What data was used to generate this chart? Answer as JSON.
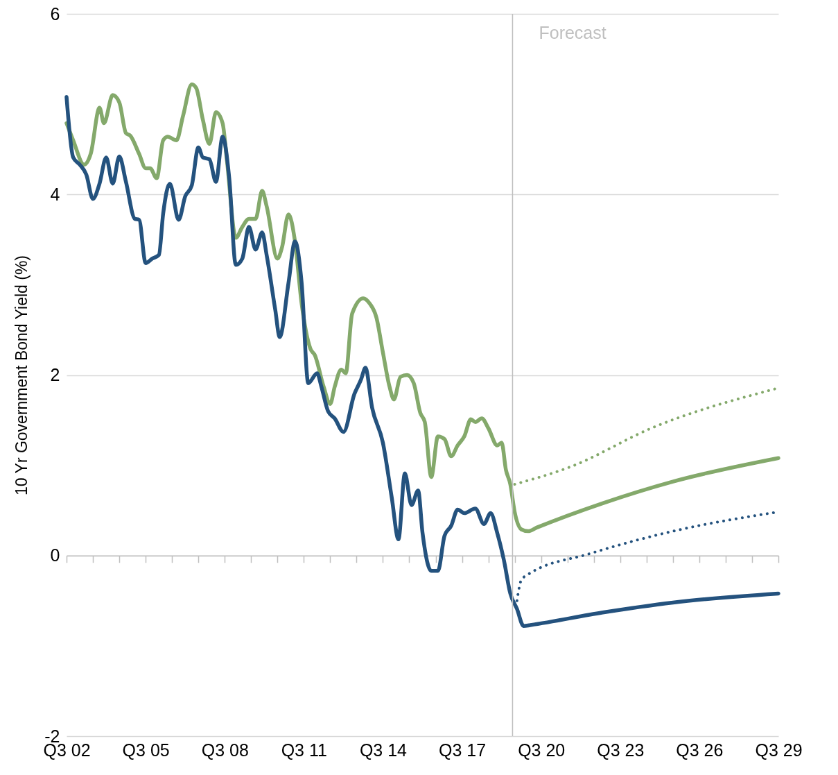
{
  "chart_data": {
    "type": "line",
    "ylabel": "10 Yr Government Bond Yield (%)",
    "xlim": [
      "2002-07",
      "2029-07"
    ],
    "ylim": [
      -2,
      6
    ],
    "yticks": [
      -2,
      0,
      2,
      4,
      6
    ],
    "xticks": [
      {
        "value": "2002-07",
        "label": "Q3 02"
      },
      {
        "value": "2003-07",
        "label": null
      },
      {
        "value": "2004-07",
        "label": null
      },
      {
        "value": "2005-07",
        "label": "Q3 05"
      },
      {
        "value": "2006-07",
        "label": null
      },
      {
        "value": "2007-07",
        "label": null
      },
      {
        "value": "2008-07",
        "label": "Q3 08"
      },
      {
        "value": "2009-07",
        "label": null
      },
      {
        "value": "2010-07",
        "label": null
      },
      {
        "value": "2011-07",
        "label": "Q3 11"
      },
      {
        "value": "2012-07",
        "label": null
      },
      {
        "value": "2013-07",
        "label": null
      },
      {
        "value": "2014-07",
        "label": "Q3 14"
      },
      {
        "value": "2015-07",
        "label": null
      },
      {
        "value": "2016-07",
        "label": null
      },
      {
        "value": "2017-07",
        "label": "Q3 17"
      },
      {
        "value": "2018-07",
        "label": null
      },
      {
        "value": "2019-07",
        "label": null
      },
      {
        "value": "2020-07",
        "label": "Q3 20"
      },
      {
        "value": "2021-07",
        "label": null
      },
      {
        "value": "2022-07",
        "label": null
      },
      {
        "value": "2023-07",
        "label": "Q3 23"
      },
      {
        "value": "2024-07",
        "label": null
      },
      {
        "value": "2025-07",
        "label": null
      },
      {
        "value": "2026-07",
        "label": "Q3 26"
      },
      {
        "value": "2027-07",
        "label": null
      },
      {
        "value": "2028-07",
        "label": null
      },
      {
        "value": "2029-07",
        "label": "Q3 29"
      }
    ],
    "grid": "y",
    "ref_lines": [
      {
        "axis": "x",
        "value": "2019-06",
        "label": "Forecast",
        "color": "#bfbfbf"
      }
    ],
    "series": [
      {
        "color": "#84a96b",
        "line_style": "solid",
        "x": [
          "2002-07",
          "2002-10",
          "2003-03",
          "2003-06",
          "2003-10",
          "2003-12",
          "2004-04",
          "2004-07",
          "2004-10",
          "2004-12",
          "2005-04",
          "2005-07",
          "2005-09",
          "2005-12",
          "2006-03",
          "2006-05",
          "2006-09",
          "2006-12",
          "2007-04",
          "2007-06",
          "2007-09",
          "2007-12",
          "2008-03",
          "2008-06",
          "2008-08",
          "2008-12",
          "2009-03",
          "2009-06",
          "2009-09",
          "2009-12",
          "2010-02",
          "2010-07",
          "2010-09",
          "2010-12",
          "2011-03",
          "2011-06",
          "2011-10",
          "2011-12",
          "2012-04",
          "2012-07",
          "2012-09",
          "2012-12",
          "2013-02",
          "2013-05",
          "2013-10",
          "2014-01",
          "2014-04",
          "2014-07",
          "2014-10",
          "2014-12",
          "2015-03",
          "2015-06",
          "2015-09",
          "2015-12",
          "2016-02",
          "2016-05",
          "2016-08",
          "2016-11",
          "2017-02",
          "2017-05",
          "2017-08",
          "2017-11",
          "2018-01",
          "2018-04",
          "2018-07",
          "2018-11",
          "2019-01",
          "2019-03",
          "2019-05",
          "2019-07",
          "2019-10",
          "2020-01",
          "2020-05",
          "2022-11",
          "2025-07",
          "2029-07"
        ],
        "values": [
          4.79,
          4.6,
          4.33,
          4.45,
          4.96,
          4.79,
          5.1,
          5.02,
          4.68,
          4.65,
          4.45,
          4.29,
          4.29,
          4.18,
          4.6,
          4.64,
          4.6,
          4.87,
          5.22,
          5.18,
          4.83,
          4.56,
          4.91,
          4.79,
          4.37,
          3.52,
          3.64,
          3.73,
          3.73,
          4.04,
          3.87,
          3.29,
          3.41,
          3.78,
          3.48,
          2.79,
          2.29,
          2.22,
          1.87,
          1.68,
          1.87,
          2.06,
          2.02,
          2.68,
          2.85,
          2.79,
          2.64,
          2.25,
          1.87,
          1.73,
          1.98,
          2.0,
          1.91,
          1.58,
          1.48,
          0.87,
          1.32,
          1.29,
          1.1,
          1.22,
          1.32,
          1.51,
          1.48,
          1.52,
          1.41,
          1.22,
          1.25,
          0.95,
          0.79,
          0.48,
          0.29,
          0.27,
          0.31,
          0.58,
          0.82,
          1.08
        ]
      },
      {
        "color": "#24527e",
        "line_style": "solid",
        "x": [
          "2002-07",
          "2002-10",
          "2003-01",
          "2003-04",
          "2003-07",
          "2003-10",
          "2004-01",
          "2004-04",
          "2004-07",
          "2004-10",
          "2005-02",
          "2005-04",
          "2005-07",
          "2005-10",
          "2006-01",
          "2006-03",
          "2006-06",
          "2006-10",
          "2007-01",
          "2007-04",
          "2007-07",
          "2007-09",
          "2007-12",
          "2008-03",
          "2008-06",
          "2008-09",
          "2008-12",
          "2009-03",
          "2009-06",
          "2009-09",
          "2009-12",
          "2010-02",
          "2010-06",
          "2010-08",
          "2010-12",
          "2011-03",
          "2011-06",
          "2011-09",
          "2012-01",
          "2012-03",
          "2012-06",
          "2012-09",
          "2013-01",
          "2013-06",
          "2013-09",
          "2013-11",
          "2014-02",
          "2014-07",
          "2014-11",
          "2015-02",
          "2015-05",
          "2015-08",
          "2015-11",
          "2016-01",
          "2016-05",
          "2016-08",
          "2016-11",
          "2017-02",
          "2017-05",
          "2017-08",
          "2018-01",
          "2018-05",
          "2018-08",
          "2018-11",
          "2019-02",
          "2019-05",
          "2019-08",
          "2019-11",
          "2020-02",
          "2022-11",
          "2025-07",
          "2029-07"
        ],
        "values": [
          5.08,
          4.41,
          4.33,
          4.22,
          3.95,
          4.12,
          4.41,
          4.12,
          4.42,
          4.14,
          3.73,
          3.72,
          3.24,
          3.29,
          3.33,
          3.79,
          4.12,
          3.72,
          3.98,
          4.1,
          4.52,
          4.41,
          4.39,
          4.14,
          4.64,
          4.18,
          3.22,
          3.29,
          3.64,
          3.39,
          3.58,
          3.33,
          2.72,
          2.42,
          3.02,
          3.48,
          3.02,
          1.91,
          2.02,
          1.87,
          1.6,
          1.52,
          1.37,
          1.79,
          1.95,
          2.08,
          1.64,
          1.25,
          0.64,
          0.18,
          0.91,
          0.56,
          0.72,
          0.25,
          -0.17,
          -0.17,
          0.22,
          0.33,
          0.51,
          0.47,
          0.52,
          0.35,
          0.47,
          0.25,
          -0.05,
          -0.42,
          -0.59,
          -0.78,
          -0.77,
          -0.63,
          -0.52,
          -0.42
        ]
      },
      {
        "color": "#84a96b",
        "line_style": "dotted",
        "x": [
          "2019-07",
          "2021-08",
          "2024-10",
          "2029-06"
        ],
        "values": [
          0.79,
          0.98,
          1.42,
          1.85
        ]
      },
      {
        "color": "#24527e",
        "line_style": "dotted",
        "x": [
          "2019-08",
          "2019-10",
          "2020-01",
          "2022-05",
          "2025-07",
          "2029-06"
        ],
        "values": [
          -0.5,
          -0.27,
          -0.21,
          0.02,
          0.27,
          0.48
        ]
      }
    ]
  }
}
